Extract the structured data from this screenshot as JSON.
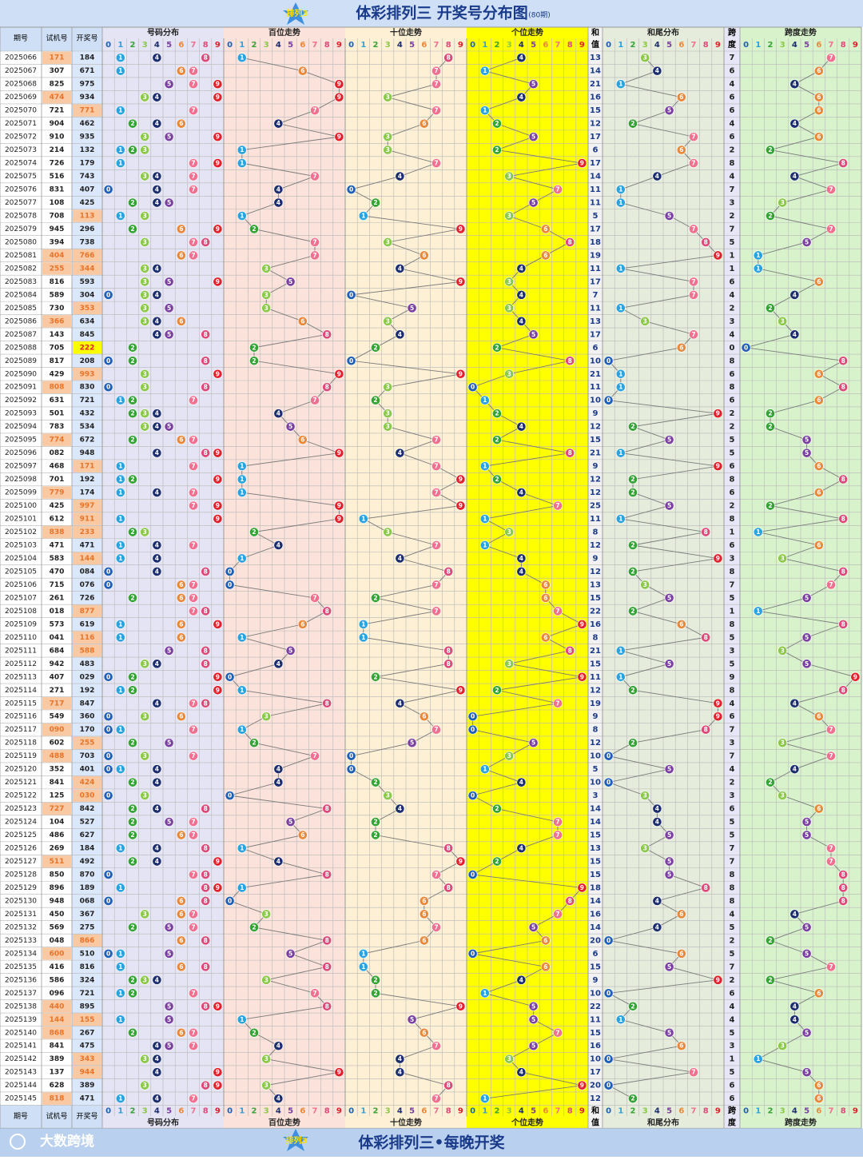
{
  "header": {
    "logo": "排列3",
    "title": "体彩排列三 开奖号分布图",
    "subtitle": "(80期)"
  },
  "columns": {
    "period": "期号",
    "trial": "试机号",
    "draw": "开奖号",
    "distribution": "号码分布",
    "hundreds": "百位走势",
    "tens": "十位走势",
    "units": "个位走势",
    "sum": [
      "和",
      "值"
    ],
    "sum_tail": "和尾分布",
    "span": [
      "跨",
      "度"
    ],
    "span_trend": "跨度走势"
  },
  "digits": [
    "0",
    "1",
    "2",
    "3",
    "4",
    "5",
    "6",
    "7",
    "8",
    "9"
  ],
  "digit_colors": [
    "#1f5fb8",
    "#2ba3de",
    "#36a336",
    "#8cc84a",
    "#1c2e6e",
    "#7b3fa0",
    "#e8883a",
    "#f07090",
    "#dc4a7a",
    "#e0202a"
  ],
  "rows": [
    [
      "2025066",
      "171",
      "184",
      13,
      7
    ],
    [
      "2025067",
      "307",
      "671",
      14,
      6
    ],
    [
      "2025068",
      "825",
      "975",
      21,
      4
    ],
    [
      "2025069",
      "474",
      "934",
      16,
      6
    ],
    [
      "2025070",
      "721",
      "771",
      15,
      6
    ],
    [
      "2025071",
      "904",
      "462",
      12,
      4
    ],
    [
      "2025072",
      "910",
      "935",
      17,
      6
    ],
    [
      "2025073",
      "214",
      "132",
      6,
      2
    ],
    [
      "2025074",
      "726",
      "179",
      17,
      8
    ],
    [
      "2025075",
      "516",
      "743",
      14,
      4
    ],
    [
      "2025076",
      "831",
      "407",
      11,
      7
    ],
    [
      "2025077",
      "108",
      "425",
      11,
      3
    ],
    [
      "2025078",
      "708",
      "113",
      5,
      2
    ],
    [
      "2025079",
      "945",
      "296",
      17,
      7
    ],
    [
      "2025080",
      "394",
      "738",
      18,
      5
    ],
    [
      "2025081",
      "404",
      "766",
      19,
      1
    ],
    [
      "2025082",
      "255",
      "344",
      11,
      1
    ],
    [
      "2025083",
      "816",
      "593",
      17,
      6
    ],
    [
      "2025084",
      "589",
      "304",
      7,
      4
    ],
    [
      "2025085",
      "730",
      "353",
      11,
      2
    ],
    [
      "2025086",
      "366",
      "634",
      13,
      3
    ],
    [
      "2025087",
      "143",
      "845",
      17,
      4
    ],
    [
      "2025088",
      "705",
      "222",
      6,
      0
    ],
    [
      "2025089",
      "817",
      "208",
      10,
      8
    ],
    [
      "2025090",
      "429",
      "993",
      21,
      6
    ],
    [
      "2025091",
      "808",
      "830",
      11,
      8
    ],
    [
      "2025092",
      "631",
      "721",
      10,
      6
    ],
    [
      "2025093",
      "501",
      "432",
      9,
      2
    ],
    [
      "2025094",
      "783",
      "534",
      12,
      2
    ],
    [
      "2025095",
      "774",
      "672",
      15,
      5
    ],
    [
      "2025096",
      "082",
      "948",
      21,
      5
    ],
    [
      "2025097",
      "468",
      "171",
      9,
      6
    ],
    [
      "2025098",
      "701",
      "192",
      12,
      8
    ],
    [
      "2025099",
      "779",
      "174",
      12,
      6
    ],
    [
      "2025100",
      "425",
      "997",
      25,
      2
    ],
    [
      "2025101",
      "612",
      "911",
      11,
      8
    ],
    [
      "2025102",
      "838",
      "233",
      8,
      1
    ],
    [
      "2025103",
      "471",
      "471",
      12,
      6
    ],
    [
      "2025104",
      "583",
      "144",
      9,
      3
    ],
    [
      "2025105",
      "470",
      "084",
      12,
      8
    ],
    [
      "2025106",
      "715",
      "076",
      13,
      7
    ],
    [
      "2025107",
      "261",
      "726",
      15,
      5
    ],
    [
      "2025108",
      "018",
      "877",
      22,
      1
    ],
    [
      "2025109",
      "573",
      "619",
      16,
      8
    ],
    [
      "2025110",
      "041",
      "116",
      8,
      5
    ],
    [
      "2025111",
      "684",
      "588",
      21,
      3
    ],
    [
      "2025112",
      "942",
      "483",
      15,
      5
    ],
    [
      "2025113",
      "407",
      "029",
      11,
      9
    ],
    [
      "2025114",
      "271",
      "192",
      12,
      8
    ],
    [
      "2025115",
      "717",
      "847",
      19,
      4
    ],
    [
      "2025116",
      "549",
      "360",
      9,
      6
    ],
    [
      "2025117",
      "090",
      "170",
      8,
      7
    ],
    [
      "2025118",
      "602",
      "255",
      12,
      3
    ],
    [
      "2025119",
      "488",
      "703",
      10,
      7
    ],
    [
      "2025120",
      "352",
      "401",
      5,
      4
    ],
    [
      "2025121",
      "841",
      "424",
      10,
      2
    ],
    [
      "2025122",
      "125",
      "030",
      3,
      3
    ],
    [
      "2025123",
      "727",
      "842",
      14,
      6
    ],
    [
      "2025124",
      "104",
      "527",
      14,
      5
    ],
    [
      "2025125",
      "486",
      "627",
      15,
      5
    ],
    [
      "2025126",
      "269",
      "184",
      13,
      7
    ],
    [
      "2025127",
      "511",
      "492",
      15,
      7
    ],
    [
      "2025128",
      "850",
      "870",
      15,
      8
    ],
    [
      "2025129",
      "896",
      "189",
      18,
      8
    ],
    [
      "2025130",
      "948",
      "068",
      14,
      8
    ],
    [
      "2025131",
      "450",
      "367",
      16,
      4
    ],
    [
      "2025132",
      "569",
      "275",
      14,
      5
    ],
    [
      "2025133",
      "048",
      "866",
      20,
      2
    ],
    [
      "2025134",
      "600",
      "510",
      6,
      5
    ],
    [
      "2025135",
      "416",
      "816",
      15,
      7
    ],
    [
      "2025136",
      "586",
      "324",
      9,
      2
    ],
    [
      "2025137",
      "096",
      "721",
      10,
      6
    ],
    [
      "2025138",
      "440",
      "895",
      22,
      4
    ],
    [
      "2025139",
      "144",
      "155",
      11,
      4
    ],
    [
      "2025140",
      "868",
      "267",
      15,
      5
    ],
    [
      "2025141",
      "841",
      "475",
      16,
      3
    ],
    [
      "2025142",
      "389",
      "343",
      10,
      1
    ],
    [
      "2025143",
      "137",
      "944",
      17,
      5
    ],
    [
      "2025144",
      "628",
      "389",
      20,
      6
    ],
    [
      "2025145",
      "818",
      "471",
      12,
      6
    ]
  ],
  "footer": {
    "brand": "大数跨境",
    "slogan": "体彩排列三•每晚开奖"
  }
}
